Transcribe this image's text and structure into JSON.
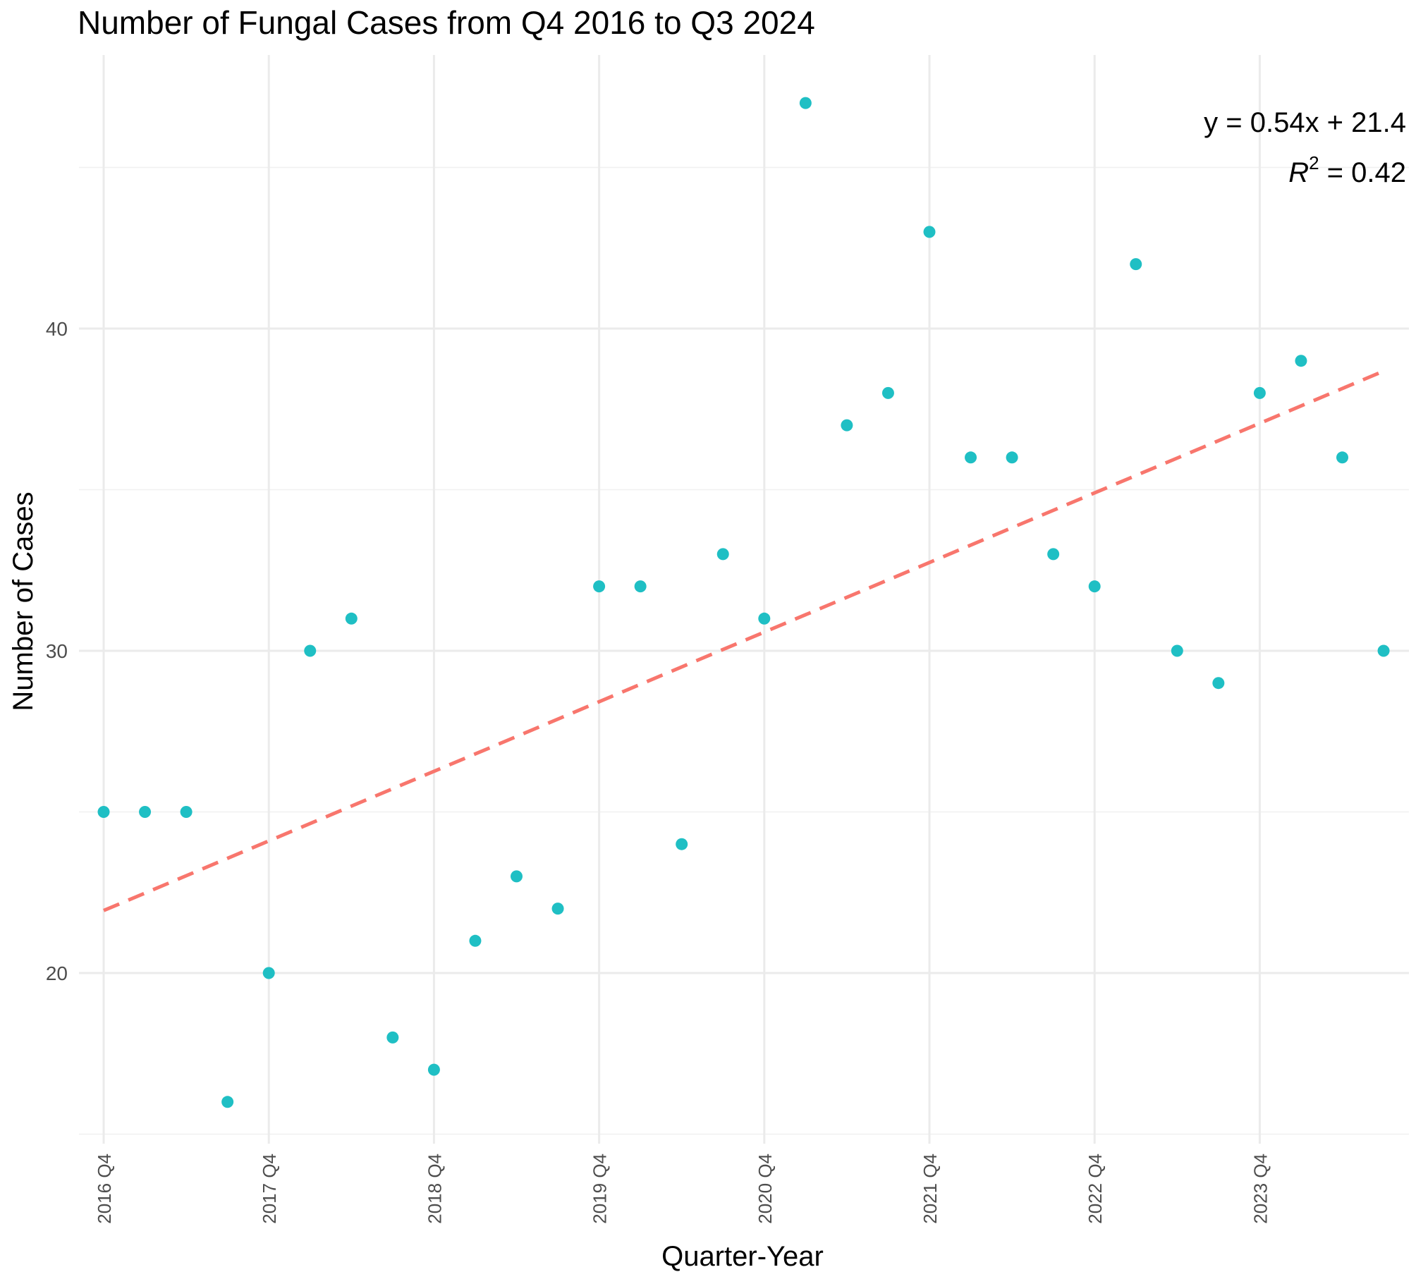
{
  "chart_data": {
    "type": "scatter",
    "title": "Number of Fungal Cases from Q4 2016 to Q3 2024",
    "xlabel": "Quarter-Year",
    "ylabel": "Number of Cases",
    "x_tick_labels": [
      "2016 Q4",
      "2017 Q4",
      "2018 Q4",
      "2019 Q4",
      "2020 Q4",
      "2021 Q4",
      "2022 Q4",
      "2023 Q4"
    ],
    "y_ticks": [
      20,
      30,
      40
    ],
    "ylim": [
      15,
      48.5
    ],
    "x_range": [
      0.5,
      32.5
    ],
    "grid": true,
    "series": [
      {
        "name": "Cases",
        "color": "#1fbfc4",
        "x": [
          1,
          2,
          3,
          4,
          5,
          6,
          7,
          8,
          9,
          10,
          11,
          12,
          13,
          14,
          15,
          16,
          17,
          18,
          19,
          20,
          21,
          22,
          23,
          24,
          25,
          26,
          27,
          28,
          29,
          30,
          31,
          32
        ],
        "values": [
          25,
          25,
          25,
          16,
          20,
          30,
          31,
          18,
          17,
          21,
          23,
          22,
          32,
          32,
          24,
          33,
          31,
          47,
          37,
          38,
          43,
          36,
          36,
          33,
          32,
          42,
          30,
          29,
          38,
          39,
          36,
          30
        ]
      }
    ],
    "trendline": {
      "color": "#f8766d",
      "style": "dashed",
      "slope": 0.54,
      "intercept": 21.4,
      "equation_label": "y = 0.54x + 21.4",
      "r2_label_prefix": "R",
      "r2_label_sup": "2",
      "r2_label_value": " = 0.42"
    },
    "legend": "none"
  }
}
